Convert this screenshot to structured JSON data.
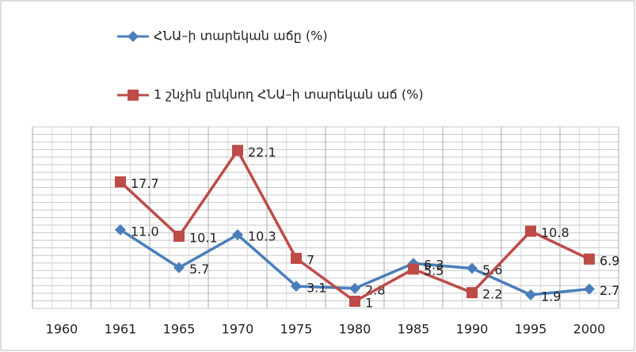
{
  "chart_data": {
    "type": "line",
    "categories": [
      "1960",
      "1961",
      "1965",
      "1970",
      "1975",
      "1980",
      "1985",
      "1990",
      "1995",
      "2000"
    ],
    "series": [
      {
        "name": "ՀՆԱ–ի տարեկան աճը (%)",
        "color": "#4a7ebb",
        "values": [
          null,
          11.0,
          5.7,
          10.3,
          3.1,
          2.8,
          6.3,
          5.6,
          1.9,
          2.7
        ],
        "value_labels": [
          null,
          "11.0",
          "5.7",
          "10.3",
          "3.1",
          "2.8",
          "6.3",
          "5.6",
          "1.9",
          "2.7"
        ]
      },
      {
        "name": "1 շնչին ընկնող ՀՆԱ–ի տարեկան աճ (%)",
        "color": "#be4b48",
        "values": [
          null,
          17.7,
          10.1,
          22.1,
          7,
          1,
          5.5,
          2.2,
          10.8,
          6.9
        ],
        "value_labels": [
          null,
          "17.7",
          "10.1",
          "22.1",
          "7",
          "1",
          "5.5",
          "2.2",
          "10.8",
          "6.9"
        ]
      }
    ],
    "ylim": [
      0,
      25.4
    ],
    "grid": true,
    "legend": "top"
  }
}
